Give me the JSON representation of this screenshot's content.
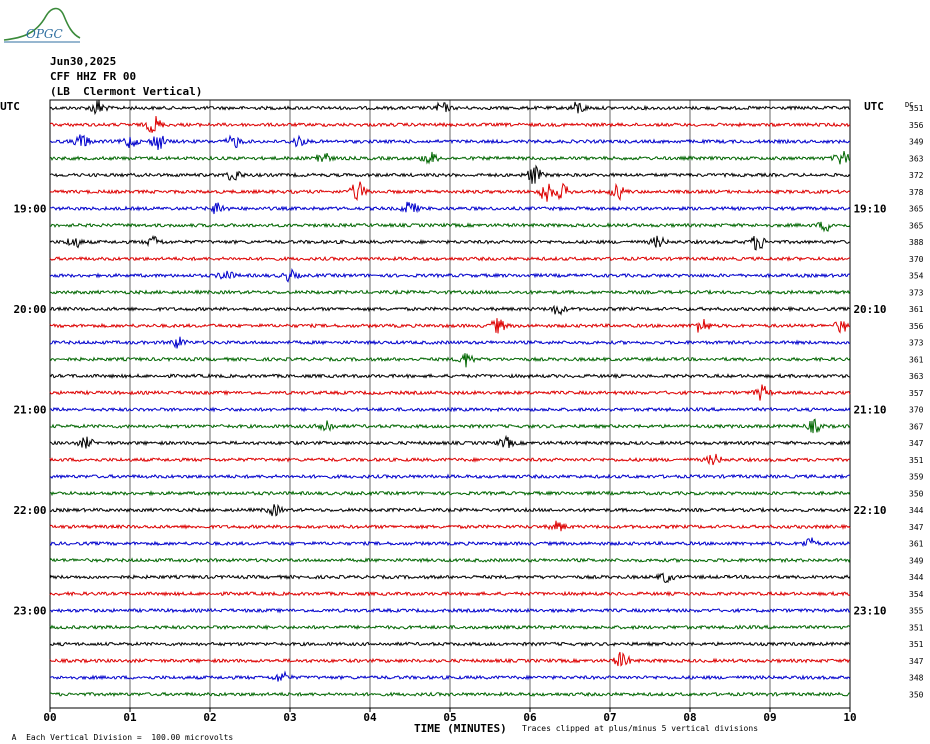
{
  "header": {
    "logo_text": "OPGC",
    "date": "Jun30,2025",
    "station": "CFF HHZ FR 00",
    "filter": "(LB  Clermont Vertical)",
    "utc_left": "UTC",
    "utc_right": "UTC",
    "dc_label": "DC"
  },
  "footer": {
    "division": "Each Vertical Division =  100.00 microvolts",
    "xlabel": "TIME (MINUTES)",
    "clip_note": "Traces clipped at plus/minus 5 vertical divisions"
  },
  "colors": [
    "#000000",
    "#dd0000",
    "#0000cc",
    "#006600"
  ],
  "chart_data": {
    "type": "line",
    "title": "",
    "xlabel": "TIME (MINUTES)",
    "xlim": [
      0,
      10
    ],
    "x_ticks": [
      "00",
      "01",
      "02",
      "03",
      "04",
      "05",
      "06",
      "07",
      "08",
      "09",
      "10"
    ],
    "rows_left_time_labels": [
      {
        "row": 6,
        "label": "19:00"
      },
      {
        "row": 12,
        "label": "20:00"
      },
      {
        "row": 18,
        "label": "21:00"
      },
      {
        "row": 24,
        "label": "22:00"
      },
      {
        "row": 30,
        "label": "23:00"
      }
    ],
    "rows_right_time_labels": [
      {
        "row": 6,
        "label": "19:10"
      },
      {
        "row": 12,
        "label": "20:10"
      },
      {
        "row": 18,
        "label": "21:10"
      },
      {
        "row": 24,
        "label": "22:10"
      },
      {
        "row": 30,
        "label": "23:10"
      }
    ],
    "dc_offsets": [
      351,
      356,
      349,
      363,
      372,
      378,
      365,
      365,
      388,
      370,
      354,
      373,
      361,
      356,
      373,
      361,
      363,
      357,
      370,
      367,
      347,
      351,
      359,
      350,
      344,
      347,
      361,
      349,
      344,
      354,
      355,
      351,
      351,
      347,
      348,
      350
    ],
    "events": [
      {
        "row": 0,
        "x": 0.6,
        "amp": 8
      },
      {
        "row": 0,
        "x": 4.9,
        "amp": 5
      },
      {
        "row": 0,
        "x": 6.6,
        "amp": 6
      },
      {
        "row": 1,
        "x": 1.3,
        "amp": 9
      },
      {
        "row": 2,
        "x": 0.4,
        "amp": 7
      },
      {
        "row": 2,
        "x": 1.0,
        "amp": 6
      },
      {
        "row": 2,
        "x": 1.35,
        "amp": 8
      },
      {
        "row": 2,
        "x": 2.3,
        "amp": 6
      },
      {
        "row": 2,
        "x": 3.1,
        "amp": 5
      },
      {
        "row": 3,
        "x": 3.4,
        "amp": 7
      },
      {
        "row": 3,
        "x": 4.75,
        "amp": 6
      },
      {
        "row": 3,
        "x": 9.9,
        "amp": 7
      },
      {
        "row": 4,
        "x": 2.3,
        "amp": 6
      },
      {
        "row": 4,
        "x": 6.05,
        "amp": 9
      },
      {
        "row": 5,
        "x": 3.85,
        "amp": 10
      },
      {
        "row": 5,
        "x": 6.2,
        "amp": 9
      },
      {
        "row": 5,
        "x": 6.4,
        "amp": 7
      },
      {
        "row": 5,
        "x": 7.1,
        "amp": 7
      },
      {
        "row": 6,
        "x": 2.1,
        "amp": 6
      },
      {
        "row": 6,
        "x": 4.5,
        "amp": 7
      },
      {
        "row": 7,
        "x": 9.7,
        "amp": 5
      },
      {
        "row": 8,
        "x": 0.3,
        "amp": 6
      },
      {
        "row": 8,
        "x": 1.3,
        "amp": 5
      },
      {
        "row": 8,
        "x": 7.6,
        "amp": 5
      },
      {
        "row": 8,
        "x": 8.85,
        "amp": 8
      },
      {
        "row": 10,
        "x": 2.2,
        "amp": 5
      },
      {
        "row": 10,
        "x": 3.0,
        "amp": 5
      },
      {
        "row": 12,
        "x": 6.35,
        "amp": 5
      },
      {
        "row": 13,
        "x": 5.6,
        "amp": 7
      },
      {
        "row": 13,
        "x": 8.15,
        "amp": 8
      },
      {
        "row": 13,
        "x": 9.9,
        "amp": 6
      },
      {
        "row": 14,
        "x": 1.6,
        "amp": 5
      },
      {
        "row": 15,
        "x": 5.2,
        "amp": 7
      },
      {
        "row": 17,
        "x": 8.9,
        "amp": 7
      },
      {
        "row": 19,
        "x": 3.45,
        "amp": 7
      },
      {
        "row": 19,
        "x": 9.55,
        "amp": 6
      },
      {
        "row": 20,
        "x": 0.45,
        "amp": 5
      },
      {
        "row": 20,
        "x": 5.7,
        "amp": 5
      },
      {
        "row": 21,
        "x": 8.3,
        "amp": 5
      },
      {
        "row": 24,
        "x": 2.8,
        "amp": 5
      },
      {
        "row": 25,
        "x": 6.35,
        "amp": 5
      },
      {
        "row": 26,
        "x": 9.5,
        "amp": 5
      },
      {
        "row": 28,
        "x": 7.7,
        "amp": 5
      },
      {
        "row": 33,
        "x": 7.15,
        "amp": 8
      },
      {
        "row": 34,
        "x": 2.9,
        "amp": 5
      }
    ]
  }
}
